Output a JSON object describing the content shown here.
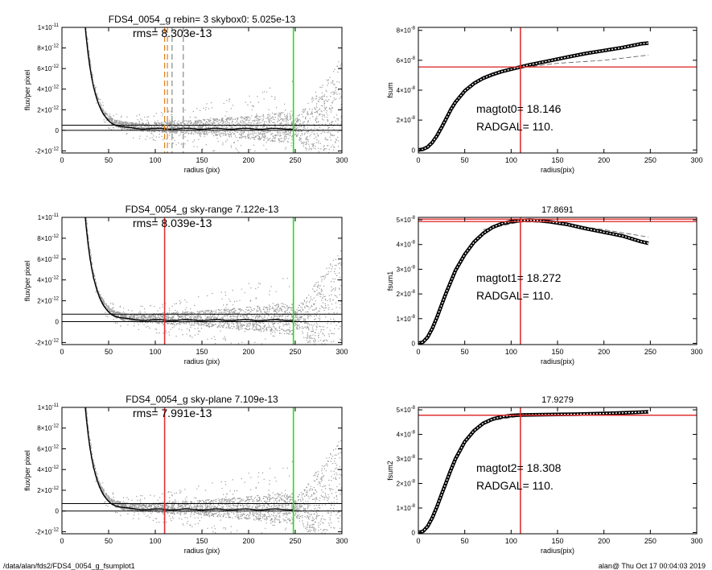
{
  "footer": {
    "path": "/data/alan/fds2/FDS4_0054_g_fsumplot1",
    "stamp": "alan@  Thu Oct 17 00:04:03 2019"
  },
  "colors": {
    "axis": "#000000",
    "scatter": "#9a9a9a",
    "profile": "#000000",
    "red_line": "#e03030",
    "green_line": "#22dd22",
    "orange_dash": "#e08020",
    "gray_dash": "#888888"
  },
  "chart_data": [
    {
      "type": "scatter",
      "title": "FDS4_0054_g rebin= 3    skybox0:  5.025e-13",
      "annotation": "rms= 8.303e-13",
      "xlabel": "radius (pix)",
      "ylabel": "flux/per pixel",
      "xlim": [
        0,
        300
      ],
      "ylim": [
        -2.2e-12,
        1e-11
      ],
      "xticks": [
        "0",
        "50",
        "100",
        "150",
        "200",
        "250",
        "300"
      ],
      "yticks": [
        {
          "v": -2e-12,
          "base": "-2×10",
          "exp": "-12"
        },
        {
          "v": 0,
          "base": "0",
          "exp": ""
        },
        {
          "v": 2e-12,
          "base": "2×10",
          "exp": "-12"
        },
        {
          "v": 4e-12,
          "base": "4×10",
          "exp": "-12"
        },
        {
          "v": 6e-12,
          "base": "6×10",
          "exp": "-12"
        },
        {
          "v": 8e-12,
          "base": "8×10",
          "exp": "-12"
        },
        {
          "v": 1e-11,
          "base": "1×10",
          "exp": "-11"
        }
      ],
      "sky_level": 5.025e-13,
      "vlines": [
        {
          "x": 248,
          "color": "#22dd22",
          "style": "solid"
        },
        {
          "x": 110,
          "color": "#e08020",
          "style": "dash"
        },
        {
          "x": 113,
          "color": "#e08020",
          "style": "dash"
        },
        {
          "x": 118,
          "color": "#888888",
          "style": "dash"
        },
        {
          "x": 130,
          "color": "#888888",
          "style": "dash"
        }
      ]
    },
    {
      "type": "scatter",
      "title": "FDS4_0054_g sky-range  7.122e-13",
      "annotation": "rms= 8.039e-13",
      "xlabel": "radius (pix)",
      "ylabel": "flux/per pixel",
      "xlim": [
        0,
        300
      ],
      "ylim": [
        -2.2e-12,
        1e-11
      ],
      "xticks": [
        "0",
        "50",
        "100",
        "150",
        "200",
        "250",
        "300"
      ],
      "yticks": [
        {
          "v": -2e-12,
          "base": "-2×10",
          "exp": "-12"
        },
        {
          "v": 0,
          "base": "0",
          "exp": ""
        },
        {
          "v": 2e-12,
          "base": "2×10",
          "exp": "-12"
        },
        {
          "v": 4e-12,
          "base": "4×10",
          "exp": "-12"
        },
        {
          "v": 6e-12,
          "base": "6×10",
          "exp": "-12"
        },
        {
          "v": 8e-12,
          "base": "8×10",
          "exp": "-12"
        },
        {
          "v": 1e-11,
          "base": "1×10",
          "exp": "-11"
        }
      ],
      "sky_level": 7.122e-13,
      "vlines": [
        {
          "x": 248,
          "color": "#22dd22",
          "style": "solid"
        },
        {
          "x": 110,
          "color": "#e03030",
          "style": "solid"
        }
      ]
    },
    {
      "type": "scatter",
      "title": "FDS4_0054_g sky-plane  7.109e-13",
      "annotation": "rms= 7.991e-13",
      "xlabel": "radius (pix)",
      "ylabel": "flux/per pixel",
      "xlim": [
        0,
        300
      ],
      "ylim": [
        -2.2e-12,
        1e-11
      ],
      "xticks": [
        "0",
        "50",
        "100",
        "150",
        "200",
        "250",
        "300"
      ],
      "yticks": [
        {
          "v": -2e-12,
          "base": "-2×10",
          "exp": "-12"
        },
        {
          "v": 0,
          "base": "0",
          "exp": ""
        },
        {
          "v": 2e-12,
          "base": "2×10",
          "exp": "-12"
        },
        {
          "v": 4e-12,
          "base": "4×10",
          "exp": "-12"
        },
        {
          "v": 6e-12,
          "base": "6×10",
          "exp": "-12"
        },
        {
          "v": 8e-12,
          "base": "8×10",
          "exp": "-12"
        },
        {
          "v": 1e-11,
          "base": "1×10",
          "exp": "-11"
        }
      ],
      "sky_level": 7.109e-13,
      "vlines": [
        {
          "x": 248,
          "color": "#22dd22",
          "style": "solid"
        },
        {
          "x": 110,
          "color": "#e03030",
          "style": "solid"
        }
      ]
    },
    {
      "type": "line",
      "title": "",
      "annotations": [
        "magtot0=  18.146",
        "RADGAL=    110."
      ],
      "xlabel": "radius(pix)",
      "ylabel": "fsum",
      "xlim": [
        0,
        300
      ],
      "ylim": [
        -2e-09,
        8.2e-08
      ],
      "xticks": [
        "0",
        "50",
        "100",
        "150",
        "200",
        "250",
        "300"
      ],
      "yticks": [
        {
          "v": 0,
          "base": "0",
          "exp": ""
        },
        {
          "v": 2e-08,
          "base": "2×10",
          "exp": "-8"
        },
        {
          "v": 4e-08,
          "base": "4×10",
          "exp": "-8"
        },
        {
          "v": 6e-08,
          "base": "6×10",
          "exp": "-8"
        },
        {
          "v": 8e-08,
          "base": "8×10",
          "exp": "-8"
        }
      ],
      "hline": 5.55e-08,
      "vline": 110,
      "curve": {
        "x": [
          0,
          5,
          10,
          15,
          20,
          25,
          30,
          35,
          40,
          50,
          60,
          70,
          80,
          90,
          100,
          110,
          120,
          140,
          160,
          180,
          200,
          220,
          240,
          248
        ],
        "y": [
          0,
          5e-10,
          2e-09,
          5e-09,
          9.5e-09,
          1.5e-08,
          2.1e-08,
          2.7e-08,
          3.2e-08,
          3.95e-08,
          4.45e-08,
          4.8e-08,
          5.05e-08,
          5.25e-08,
          5.4e-08,
          5.55e-08,
          5.7e-08,
          5.95e-08,
          6.2e-08,
          6.45e-08,
          6.65e-08,
          6.85e-08,
          7.1e-08,
          7.15e-08
        ]
      },
      "dashed": {
        "x": [
          70,
          110,
          150,
          200,
          248
        ],
        "y": [
          4.85e-08,
          5.5e-08,
          5.8e-08,
          6e-08,
          6.35e-08
        ]
      }
    },
    {
      "type": "line",
      "title": "17.8691",
      "annotations": [
        "magtot1=  18.272",
        "RADGAL=    110."
      ],
      "xlabel": "radius(pix)",
      "ylabel": "fsum1",
      "xlim": [
        0,
        300
      ],
      "ylim": [
        -5e-10,
        5.1e-08
      ],
      "xticks": [
        "0",
        "50",
        "100",
        "150",
        "200",
        "250",
        "300"
      ],
      "yticks": [
        {
          "v": 0,
          "base": "0",
          "exp": ""
        },
        {
          "v": 1e-08,
          "base": "1×10",
          "exp": "-8"
        },
        {
          "v": 2e-08,
          "base": "2×10",
          "exp": "-8"
        },
        {
          "v": 3e-08,
          "base": "3×10",
          "exp": "-8"
        },
        {
          "v": 4e-08,
          "base": "4×10",
          "exp": "-8"
        },
        {
          "v": 5e-08,
          "base": "5×10",
          "exp": "-8"
        }
      ],
      "hlines": [
        4.93e-08,
        5.03e-08
      ],
      "vline": 110,
      "curve": {
        "x": [
          0,
          5,
          10,
          15,
          20,
          25,
          30,
          35,
          40,
          50,
          60,
          70,
          80,
          90,
          100,
          110,
          120,
          130,
          140,
          160,
          180,
          200,
          220,
          240,
          248
        ],
        "y": [
          0,
          5e-10,
          2.5e-09,
          6e-09,
          1.05e-08,
          1.55e-08,
          2.05e-08,
          2.5e-08,
          2.95e-08,
          3.6e-08,
          4.1e-08,
          4.45e-08,
          4.7e-08,
          4.85e-08,
          4.93e-08,
          4.97e-08,
          4.99e-08,
          4.97e-08,
          4.93e-08,
          4.82e-08,
          4.65e-08,
          4.5e-08,
          4.35e-08,
          4.12e-08,
          4.05e-08
        ]
      },
      "dashed": {
        "x": [
          70,
          110,
          150,
          200,
          248
        ],
        "y": [
          4.6e-08,
          4.92e-08,
          4.88e-08,
          4.6e-08,
          4.3e-08
        ]
      }
    },
    {
      "type": "line",
      "title": "17.9279",
      "annotations": [
        "magtot2=  18.308",
        "RADGAL=    110."
      ],
      "xlabel": "radius(pix)",
      "ylabel": "fsum2",
      "xlim": [
        0,
        300
      ],
      "ylim": [
        -5e-10,
        5.1e-08
      ],
      "xticks": [
        "0",
        "50",
        "100",
        "150",
        "200",
        "250",
        "300"
      ],
      "yticks": [
        {
          "v": 0,
          "base": "0",
          "exp": ""
        },
        {
          "v": 1e-08,
          "base": "1×10",
          "exp": "-8"
        },
        {
          "v": 2e-08,
          "base": "2×10",
          "exp": "-8"
        },
        {
          "v": 3e-08,
          "base": "3×10",
          "exp": "-8"
        },
        {
          "v": 4e-08,
          "base": "4×10",
          "exp": "-8"
        },
        {
          "v": 5e-08,
          "base": "5×10",
          "exp": "-8"
        }
      ],
      "hline": 4.78e-08,
      "vline": 110,
      "curve": {
        "x": [
          0,
          5,
          10,
          15,
          20,
          25,
          30,
          35,
          40,
          50,
          60,
          70,
          80,
          90,
          100,
          110,
          130,
          150,
          170,
          190,
          210,
          230,
          248
        ],
        "y": [
          0,
          5e-10,
          2.5e-09,
          6e-09,
          1.05e-08,
          1.55e-08,
          2.05e-08,
          2.55e-08,
          3e-08,
          3.7e-08,
          4.15e-08,
          4.45e-08,
          4.62e-08,
          4.72e-08,
          4.77e-08,
          4.79e-08,
          4.8e-08,
          4.81e-08,
          4.82e-08,
          4.84e-08,
          4.86e-08,
          4.89e-08,
          4.92e-08
        ]
      },
      "dashed": {
        "x": [
          70,
          110,
          150,
          200,
          248
        ],
        "y": [
          4.5e-08,
          4.75e-08,
          4.8e-08,
          4.85e-08,
          4.9e-08
        ]
      }
    }
  ]
}
